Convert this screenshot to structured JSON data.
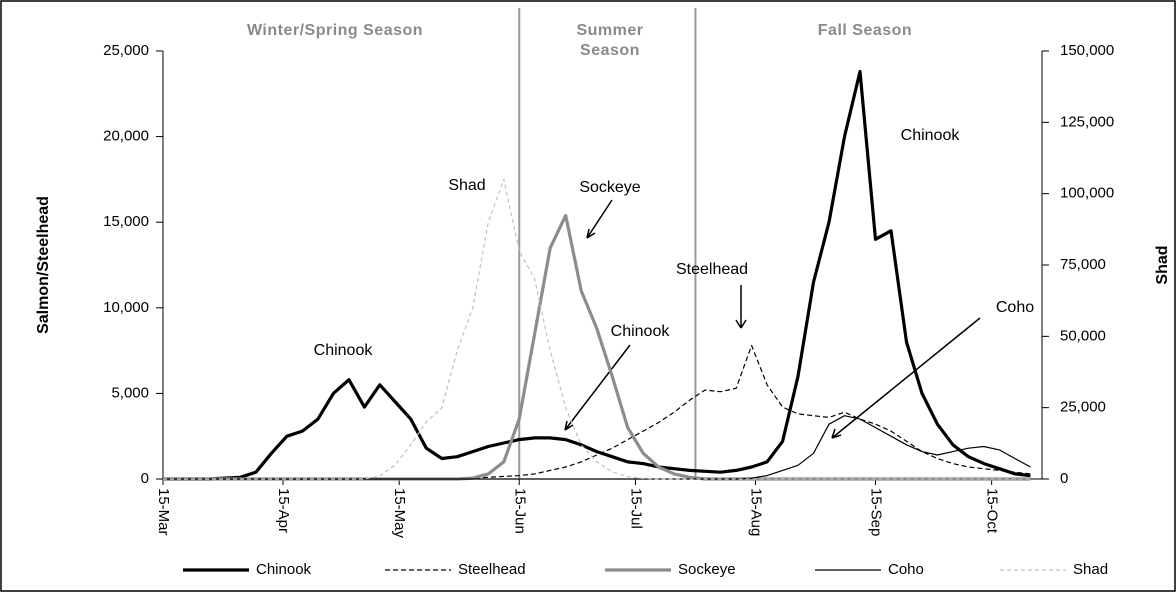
{
  "chart_data": {
    "type": "line",
    "y_label": "Salmon/Steelhead",
    "y2_label": "Shad",
    "seasons": [
      "Winter/Spring Season",
      "Summer Season",
      "Fall Season"
    ],
    "boundaries": [
      92,
      137.5
    ],
    "annotations": [
      "Chinook",
      "Shad",
      "Sockeye",
      "Chinook",
      "Steelhead",
      "Chinook",
      "Coho"
    ],
    "xlim": [
      0,
      227
    ],
    "xticks": [
      {
        "value": 0,
        "label": "15-Mar"
      },
      {
        "value": 31,
        "label": "15-Apr"
      },
      {
        "value": 61,
        "label": "15-May"
      },
      {
        "value": 92,
        "label": "15-Jun"
      },
      {
        "value": 122,
        "label": "15-Jul"
      },
      {
        "value": 153,
        "label": "15-Aug"
      },
      {
        "value": 184,
        "label": "15-Sep"
      },
      {
        "value": 214,
        "label": "15-Oct"
      }
    ],
    "ylim": [
      0,
      25000
    ],
    "yticks": [
      0,
      {
        "value": 5000,
        "label": "5,000"
      },
      {
        "value": 10000,
        "label": "10,000"
      },
      {
        "value": 15000,
        "label": "15,000"
      },
      {
        "value": 20000,
        "label": "20,000"
      },
      {
        "value": 25000,
        "label": "25,000"
      }
    ],
    "y2lim": [
      0,
      150000
    ],
    "y2ticks": [
      0,
      {
        "value": 25000,
        "label": "25,000"
      },
      {
        "value": 50000,
        "label": "50,000"
      },
      {
        "value": 75000,
        "label": "75,000"
      },
      {
        "value": 100000,
        "label": "100,000"
      },
      {
        "value": 125000,
        "label": "125,000"
      },
      {
        "value": 150000,
        "label": "150,000"
      }
    ],
    "x": [
      0,
      4,
      8,
      12,
      16,
      20,
      24,
      28,
      32,
      36,
      40,
      44,
      48,
      52,
      56,
      60,
      64,
      68,
      72,
      76,
      80,
      84,
      88,
      92,
      96,
      100,
      104,
      108,
      112,
      116,
      120,
      124,
      128,
      132,
      136,
      140,
      144,
      148,
      152,
      156,
      160,
      164,
      168,
      172,
      176,
      180,
      184,
      188,
      192,
      196,
      200,
      204,
      208,
      212,
      216,
      220,
      224
    ],
    "series": [
      {
        "name": "Chinook",
        "color": "#000000",
        "width": 3.2,
        "dash": "none",
        "values": [
          0,
          0,
          0,
          0,
          50,
          100,
          400,
          1500,
          2500,
          2800,
          3500,
          5000,
          5800,
          4200,
          5500,
          4500,
          3500,
          1800,
          1200,
          1300,
          1600,
          1900,
          2100,
          2300,
          2400,
          2400,
          2300,
          2000,
          1600,
          1300,
          1000,
          900,
          700,
          600,
          500,
          450,
          400,
          500,
          700,
          1000,
          2200,
          6000,
          11500,
          15000,
          20000,
          23800,
          14000,
          14500,
          8000,
          5000,
          3200,
          2000,
          1300,
          900,
          600,
          300,
          200
        ]
      },
      {
        "name": "Steelhead",
        "color": "#000000",
        "width": 1.2,
        "dash": "5,3",
        "values": [
          0,
          0,
          0,
          0,
          0,
          0,
          0,
          0,
          0,
          0,
          0,
          0,
          0,
          0,
          0,
          0,
          0,
          0,
          0,
          0,
          50,
          100,
          150,
          200,
          300,
          500,
          700,
          1000,
          1400,
          1800,
          2300,
          2800,
          3300,
          3900,
          4600,
          5200,
          5100,
          5300,
          7800,
          5500,
          4200,
          3800,
          3700,
          3600,
          3900,
          3500,
          3200,
          2800,
          2200,
          1600,
          1200,
          900,
          700,
          600,
          500,
          400,
          300
        ]
      },
      {
        "name": "Sockeye",
        "color": "#8c8c8c",
        "width": 3.2,
        "dash": "none",
        "values": [
          0,
          0,
          0,
          0,
          0,
          0,
          0,
          0,
          0,
          0,
          0,
          0,
          0,
          0,
          0,
          0,
          0,
          0,
          0,
          0,
          50,
          300,
          1000,
          3500,
          8500,
          13500,
          15400,
          11000,
          8800,
          6000,
          3000,
          1500,
          700,
          300,
          100,
          0,
          0,
          0,
          0,
          0,
          0,
          0,
          0,
          0,
          0,
          0,
          0,
          0,
          0,
          0,
          0,
          0,
          0,
          0,
          0,
          0,
          0
        ]
      },
      {
        "name": "Coho",
        "color": "#000000",
        "width": 1.2,
        "dash": "none",
        "values": [
          0,
          0,
          0,
          0,
          0,
          0,
          0,
          0,
          0,
          0,
          0,
          0,
          0,
          0,
          0,
          0,
          0,
          0,
          0,
          0,
          0,
          0,
          0,
          0,
          0,
          0,
          0,
          0,
          0,
          0,
          0,
          0,
          0,
          0,
          0,
          0,
          0,
          0,
          50,
          200,
          500,
          800,
          1500,
          3200,
          3700,
          3500,
          3000,
          2500,
          2000,
          1600,
          1400,
          1600,
          1800,
          1900,
          1700,
          1200,
          700
        ]
      },
      {
        "name": "Shad",
        "color": "#c0c0c0",
        "width": 1.2,
        "dash": "4,3",
        "axis": "y2",
        "values": [
          0,
          0,
          0,
          0,
          0,
          0,
          0,
          0,
          0,
          0,
          0,
          0,
          0,
          0,
          1000,
          5000,
          12000,
          20000,
          25000,
          45000,
          60000,
          90000,
          105000,
          80000,
          70000,
          45000,
          25000,
          12000,
          6000,
          2500,
          800,
          200,
          0,
          0,
          0,
          0,
          0,
          0,
          0,
          0,
          0,
          0,
          0,
          0,
          0,
          0,
          0,
          0,
          0,
          0,
          0,
          0,
          0,
          0,
          0,
          0,
          0
        ]
      }
    ]
  }
}
